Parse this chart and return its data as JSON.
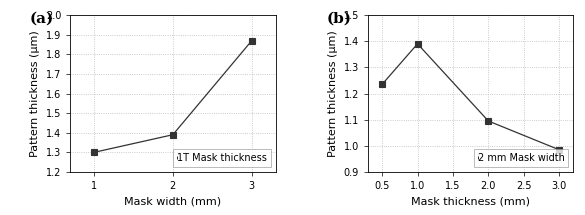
{
  "plot_a": {
    "x": [
      1,
      2,
      3
    ],
    "y": [
      1.3,
      1.39,
      1.87
    ],
    "xlabel": "Mask width (mm)",
    "ylabel": "Pattern thickness (μm)",
    "xlim": [
      0.7,
      3.3
    ],
    "ylim": [
      1.2,
      2.0
    ],
    "yticks": [
      1.2,
      1.3,
      1.4,
      1.5,
      1.6,
      1.7,
      1.8,
      1.9,
      2.0
    ],
    "xticks": [
      1,
      2,
      3
    ],
    "legend": "1T Mask thickness",
    "label": "(a)"
  },
  "plot_b": {
    "x": [
      0.5,
      1.0,
      2.0,
      3.0
    ],
    "y": [
      1.235,
      1.39,
      1.095,
      0.985
    ],
    "xlabel": "Mask thickness (mm)",
    "ylabel": "Pattern thickness (μm)",
    "xlim": [
      0.3,
      3.2
    ],
    "ylim": [
      0.9,
      1.5
    ],
    "yticks": [
      0.9,
      1.0,
      1.1,
      1.2,
      1.3,
      1.4,
      1.5
    ],
    "xticks": [
      0.5,
      1.0,
      1.5,
      2.0,
      2.5,
      3.0
    ],
    "legend": "2 mm Mask width",
    "label": "(b)"
  },
  "line_color": "#333333",
  "marker": "s",
  "marker_size": 4,
  "marker_facecolor": "#333333",
  "grid_color": "#bbbbbb",
  "font_size": 7,
  "label_font_size": 8,
  "tick_font_size": 7
}
